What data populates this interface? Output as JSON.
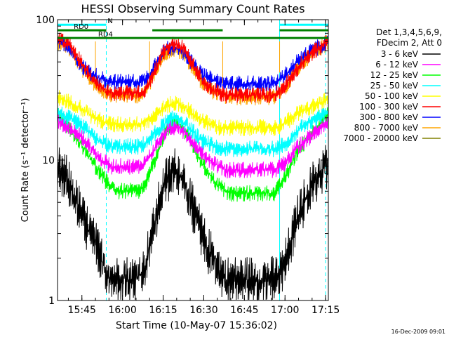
{
  "chart_data": {
    "type": "line",
    "title": "HESSI Observing Summary Count Rates",
    "xlabel": "Start Time (10-May-07 15:36:02)",
    "ylabel": "Count Rate (s⁻¹ detector⁻¹)",
    "yscale": "log",
    "ylim": [
      1,
      100
    ],
    "xlim_minutes_after_start": [
      0,
      100
    ],
    "x_ticks": [
      {
        "t": 9,
        "label": "15:45"
      },
      {
        "t": 24,
        "label": "16:00"
      },
      {
        "t": 39,
        "label": "16:15"
      },
      {
        "t": 54,
        "label": "16:30"
      },
      {
        "t": 69,
        "label": "16:45"
      },
      {
        "t": 84,
        "label": "17:00"
      },
      {
        "t": 99,
        "label": "17:15"
      }
    ],
    "y_ticks": [
      {
        "v": 1,
        "label": "1"
      },
      {
        "v": 10,
        "label": "10"
      },
      {
        "v": 100,
        "label": "100"
      }
    ],
    "legend_header": [
      "Det 1,3,4,5,6,9,",
      "FDecim 2, Att 0"
    ],
    "legend_position": "right",
    "x": [
      0,
      2,
      4,
      6,
      8,
      10,
      12,
      14,
      16,
      18,
      20,
      22,
      24,
      26,
      28,
      30,
      32,
      34,
      36,
      38,
      40,
      42,
      44,
      46,
      48,
      50,
      52,
      54,
      56,
      58,
      60,
      62,
      64,
      66,
      68,
      70,
      72,
      74,
      76,
      78,
      80,
      82,
      84,
      86,
      88,
      90,
      92,
      94,
      96,
      98,
      100
    ],
    "series": [
      {
        "name": "3 - 6 keV",
        "color": "#000000",
        "values": [
          8.5,
          8,
          7,
          5.5,
          4.5,
          3.6,
          3,
          2.5,
          2,
          1.6,
          1.4,
          1.4,
          1.5,
          1.4,
          1.4,
          1.5,
          1.6,
          2.5,
          3.5,
          5.5,
          7,
          8,
          8.5,
          7.5,
          6,
          4.5,
          3.5,
          2.7,
          2.2,
          2,
          1.6,
          1.4,
          1.4,
          1.4,
          1.4,
          1.4,
          1.4,
          1.4,
          1.4,
          1.4,
          1.4,
          1.5,
          1.8,
          2.5,
          3.5,
          4.5,
          5.5,
          6.5,
          7.5,
          8.5,
          9.5
        ]
      },
      {
        "name": "6 - 12 keV",
        "color": "#ff00ff",
        "values": [
          19,
          18,
          17,
          16,
          15,
          14,
          12.5,
          11,
          10,
          9.5,
          9,
          9,
          9,
          9,
          9,
          9,
          9.5,
          10.5,
          12,
          14,
          16,
          17,
          17.5,
          16.5,
          15,
          13.5,
          12,
          11,
          10,
          9.5,
          9,
          8.5,
          8.5,
          8.5,
          8.5,
          8.5,
          8.5,
          8.5,
          8.5,
          8.5,
          8.5,
          9,
          9.5,
          10.5,
          12,
          13,
          14,
          15,
          16.5,
          18,
          19
        ]
      },
      {
        "name": "12 - 25 keV",
        "color": "#00ff00",
        "values": [
          21,
          19,
          17,
          15,
          13.5,
          12,
          10.5,
          9,
          8,
          7,
          6.5,
          6,
          6,
          6,
          6,
          6,
          6.5,
          8,
          10,
          13,
          16,
          18,
          19,
          17,
          15,
          12.5,
          10.5,
          9,
          8,
          7,
          6.5,
          6,
          5.8,
          5.8,
          5.8,
          5.8,
          5.8,
          5.8,
          5.8,
          5.8,
          5.8,
          6.5,
          7.5,
          9,
          11,
          12.5,
          14,
          15.5,
          17.5,
          19.5,
          21
        ]
      },
      {
        "name": "25 - 50 keV",
        "color": "#00ffff",
        "values": [
          22,
          21,
          20,
          19,
          18,
          17,
          15.5,
          14,
          13.5,
          13,
          12.5,
          12.5,
          12.5,
          12.5,
          12.5,
          12.5,
          13,
          14,
          15.5,
          17,
          18.5,
          19.5,
          20,
          19,
          17.5,
          16,
          14.5,
          13.5,
          13,
          12.5,
          12.3,
          12,
          12,
          12,
          12,
          12,
          12,
          12,
          12,
          12,
          12,
          12.5,
          13,
          14,
          15.5,
          17,
          18,
          19,
          20,
          21,
          22
        ]
      },
      {
        "name": "50 - 100 keV",
        "color": "#ffff00",
        "values": [
          28,
          27,
          26,
          25,
          24,
          22.5,
          21,
          20,
          19,
          18.5,
          18,
          18,
          18,
          18,
          18,
          18,
          18.5,
          19.5,
          21,
          22.5,
          24,
          25,
          25.5,
          24.5,
          23,
          21.5,
          20,
          19,
          18,
          17.5,
          17,
          17,
          17,
          17,
          17,
          17,
          17,
          17,
          17,
          17,
          17,
          17.5,
          18.5,
          19.5,
          21,
          22,
          23,
          24,
          25,
          26,
          27
        ]
      },
      {
        "name": "100 - 300 keV",
        "color": "#ff0000",
        "values": [
          72,
          70,
          66,
          60,
          52,
          45,
          40,
          36,
          33,
          31,
          30,
          30,
          30,
          30,
          30,
          30,
          31,
          36,
          44,
          54,
          62,
          66,
          67,
          63,
          56,
          48,
          41,
          36,
          33,
          31,
          30,
          29,
          29,
          29,
          29,
          29,
          29,
          29,
          29,
          29,
          29,
          31,
          34,
          38,
          44,
          49,
          54,
          58,
          62,
          66,
          70
        ]
      },
      {
        "name": "300 - 800 keV",
        "color": "#0000ff",
        "values": [
          70,
          68,
          64,
          57,
          50,
          45,
          42,
          40,
          38,
          37,
          36.5,
          36,
          36,
          36,
          36,
          36,
          37,
          41,
          48,
          56,
          61,
          63,
          63,
          60,
          54,
          48,
          43,
          40,
          38,
          37,
          36,
          35.5,
          35,
          35,
          35,
          35,
          35,
          35,
          35,
          35,
          35,
          37,
          40,
          44,
          49,
          53,
          57,
          60,
          63,
          66,
          69
        ]
      },
      {
        "name": "800 - 7000 keV",
        "color": "#ffa500",
        "values": [
          70,
          68,
          63,
          56,
          48,
          42,
          38,
          34.5,
          32,
          30.5,
          29.5,
          29,
          29,
          29,
          29,
          29,
          30,
          35,
          43,
          52,
          58,
          61,
          61,
          58,
          52,
          45,
          39,
          34.5,
          32,
          30.5,
          29.5,
          28.5,
          28,
          28,
          28,
          28,
          28,
          28,
          28,
          28,
          28,
          30,
          33,
          37,
          43,
          48,
          53,
          57,
          61,
          65,
          69
        ]
      },
      {
        "name": "7000 - 20000 keV",
        "color": "#808000",
        "values": [
          7.5,
          7,
          6,
          5,
          4,
          3.2,
          2.7,
          2.3,
          1.9,
          1.6,
          1.4,
          1.4,
          1.4,
          1.4,
          1.4,
          1.4,
          1.6,
          2.3,
          3.3,
          5,
          6.3,
          7,
          7.5,
          6.8,
          5.5,
          4.2,
          3.3,
          2.6,
          2.1,
          1.9,
          1.6,
          1.4,
          1.4,
          1.4,
          1.4,
          1.4,
          1.4,
          1.4,
          1.4,
          1.4,
          1.4,
          1.5,
          1.7,
          2.3,
          3.2,
          4.2,
          5,
          6,
          6.8,
          7.8,
          8.5
        ]
      }
    ],
    "vertical_lines": [
      {
        "t": 0,
        "style": "solid",
        "color": "#00ffff"
      },
      {
        "t": 18,
        "style": "dashed",
        "color": "#00ffff"
      },
      {
        "t": 82,
        "style": "solid",
        "color": "#00ffff"
      },
      {
        "t": 99,
        "style": "dashed",
        "color": "#00ffff"
      }
    ],
    "bars": [
      {
        "label": "N",
        "y": 92,
        "color": "#00ffff",
        "segments": [
          [
            0,
            18
          ],
          [
            82,
            100
          ]
        ]
      },
      {
        "label": "RD0",
        "y": 84,
        "color": "#008000",
        "segments": [
          [
            0,
            18
          ],
          [
            35,
            61
          ],
          [
            82,
            100
          ]
        ]
      },
      {
        "label": "RD4",
        "y": 74,
        "color": "#008000",
        "segments": [
          [
            0,
            100
          ]
        ]
      }
    ],
    "attenuator_steps": [
      {
        "t": 14,
        "from": 42,
        "to": 70
      },
      {
        "t": 34,
        "from": 70,
        "to": 40
      },
      {
        "t": 61,
        "from": 35,
        "to": 70
      },
      {
        "t": 82,
        "from": 70,
        "to": 42
      }
    ]
  },
  "footer": {
    "timestamp": "16-Dec-2009 09:01"
  }
}
